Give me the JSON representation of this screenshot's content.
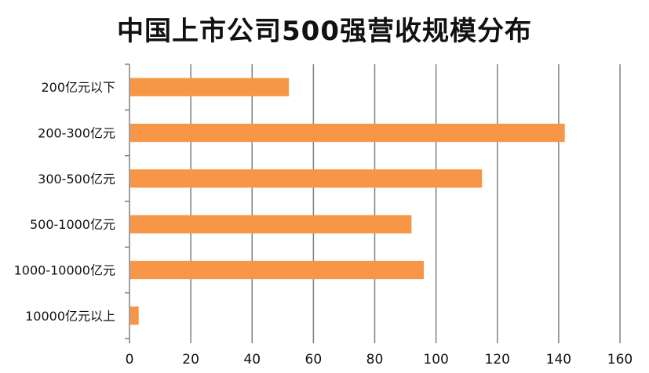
{
  "chart_data": {
    "type": "bar",
    "orientation": "horizontal",
    "title": "中国上市公司500强营收规模分布",
    "xlabel": "",
    "ylabel": "",
    "categories": [
      "200亿元以下",
      "200-300亿元",
      "300-500亿元",
      "500-1000亿元",
      "1000-10000亿元",
      "10000亿元以上"
    ],
    "values": [
      52,
      142,
      115,
      92,
      96,
      3
    ],
    "xlim": [
      0,
      160
    ],
    "xticks": [
      0,
      20,
      40,
      60,
      80,
      100,
      120,
      140,
      160
    ],
    "grid": "vertical",
    "legend": "none",
    "colors": {
      "bar": "#F79646",
      "grid": "#808080",
      "axis": "#808080",
      "text": "#111111"
    }
  }
}
